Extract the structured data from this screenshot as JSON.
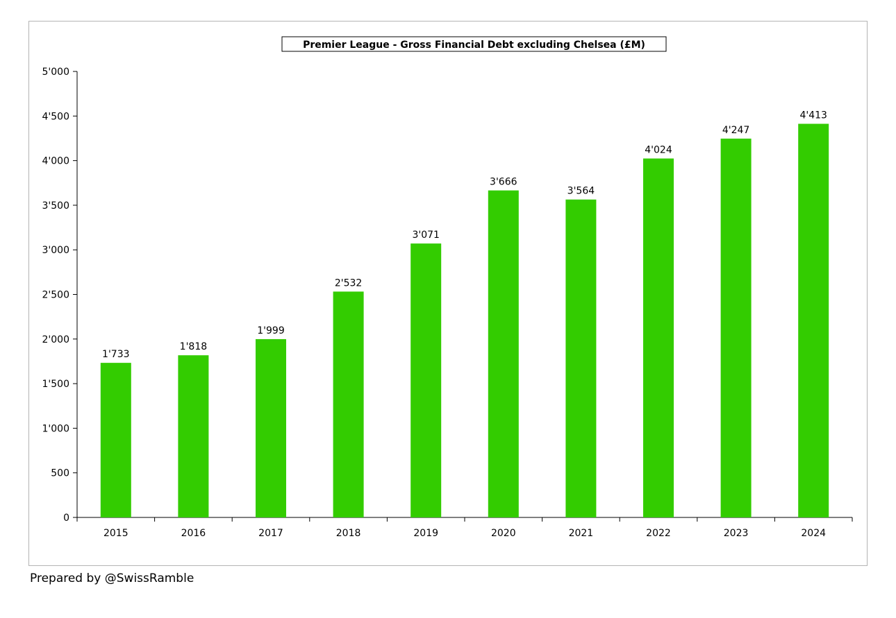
{
  "chart_data": {
    "type": "bar",
    "title": "Premier League - Gross Financial Debt excluding Chelsea (£M)",
    "categories": [
      "2015",
      "2016",
      "2017",
      "2018",
      "2019",
      "2020",
      "2021",
      "2022",
      "2023",
      "2024"
    ],
    "values": [
      1733,
      1818,
      1999,
      2532,
      3071,
      3666,
      3564,
      4024,
      4247,
      4413
    ],
    "value_labels": [
      "1'733",
      "1'818",
      "1'999",
      "2'532",
      "3'071",
      "3'666",
      "3'564",
      "4'024",
      "4'247",
      "4'413"
    ],
    "yticks": [
      0,
      500,
      1000,
      1500,
      2000,
      2500,
      3000,
      3500,
      4000,
      4500,
      5000
    ],
    "ytick_labels": [
      "0",
      "500",
      "1'000",
      "1'500",
      "2'000",
      "2'500",
      "3'000",
      "3'500",
      "4'000",
      "4'500",
      "5'000"
    ],
    "ylim": [
      0,
      5000
    ],
    "xlabel": "",
    "ylabel": "",
    "grid": false,
    "legend": "none",
    "bar_color": "#33cc00"
  },
  "footer": {
    "credit": "Prepared by @SwissRamble"
  }
}
